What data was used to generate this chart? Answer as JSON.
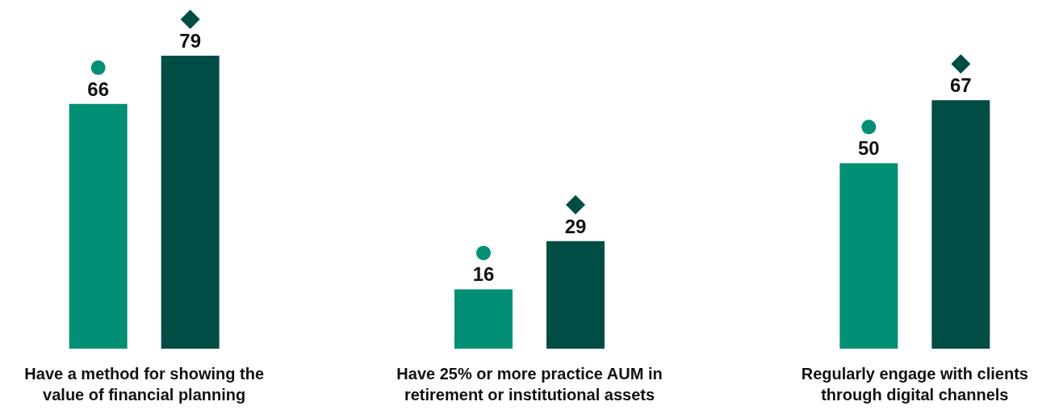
{
  "chart_data": {
    "type": "bar",
    "categories": [
      "Have a method for showing the value of financial planning",
      "Have 25% or more practice AUM in retirement or institutional assets",
      "Regularly engage with clients through digital channels"
    ],
    "series": [
      {
        "color": "#008f74",
        "values": [
          66,
          16,
          50
        ]
      },
      {
        "color": "#004d45",
        "values": [
          79,
          29,
          67
        ]
      }
    ],
    "data_labels": true
  }
}
